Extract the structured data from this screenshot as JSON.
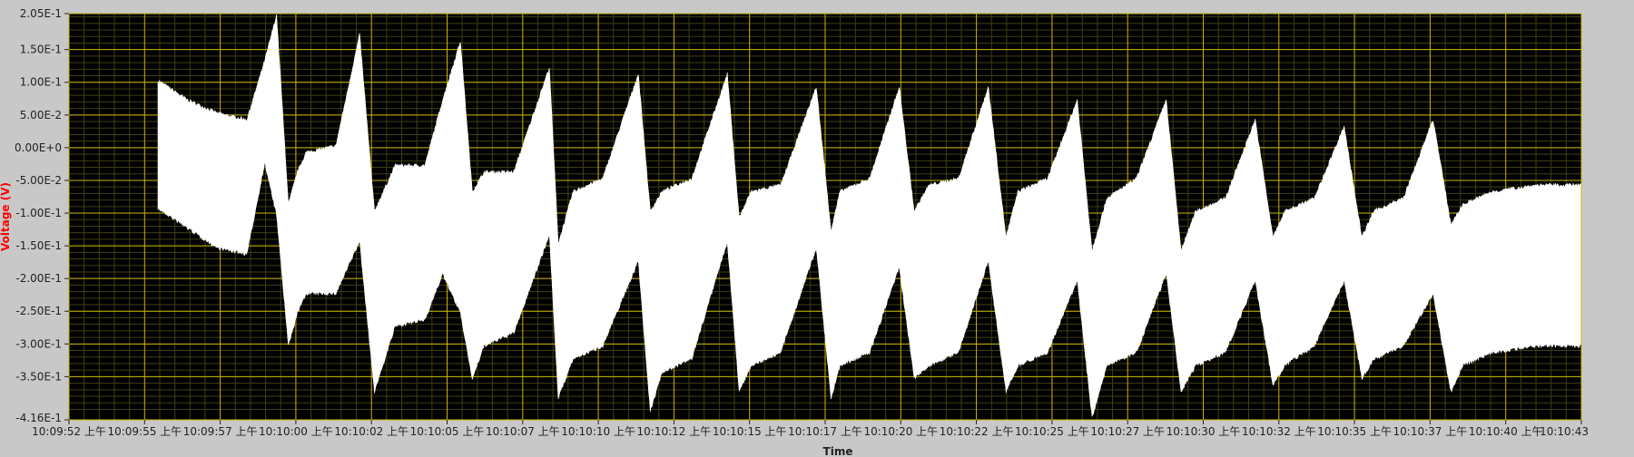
{
  "colors": {
    "panel": "#c8c8c8",
    "plot_bg": "#000000",
    "major_grid": "#c9b800",
    "minor_grid": "#3f3f14",
    "trace": "#ffffff",
    "ylabel": "#ff0000",
    "text": "#222222"
  },
  "chart_data": {
    "type": "area",
    "title": "",
    "xlabel": "Time",
    "ylabel": "Voltage (V)",
    "ylim": [
      -0.416,
      0.205
    ],
    "y_ticks": [
      {
        "value": 0.205,
        "label": "2.05E-1"
      },
      {
        "value": 0.15,
        "label": "1.50E-1"
      },
      {
        "value": 0.1,
        "label": "1.00E-1"
      },
      {
        "value": 0.05,
        "label": "5.00E-2"
      },
      {
        "value": 0.0,
        "label": "0.00E+0"
      },
      {
        "value": -0.05,
        "label": "-5.00E-2"
      },
      {
        "value": -0.1,
        "label": "-1.00E-1"
      },
      {
        "value": -0.15,
        "label": "-1.50E-1"
      },
      {
        "value": -0.2,
        "label": "-2.00E-1"
      },
      {
        "value": -0.25,
        "label": "-2.50E-1"
      },
      {
        "value": -0.3,
        "label": "-3.00E-1"
      },
      {
        "value": -0.35,
        "label": "-3.50E-1"
      },
      {
        "value": -0.416,
        "label": "-4.16E-1"
      }
    ],
    "x_ticks": [
      "10:09:52 上午",
      "10:09:55 上午",
      "10:09:57 上午",
      "10:10:00 上午",
      "10:10:02 上午",
      "10:10:05 上午",
      "10:10:07 上午",
      "10:10:10 上午",
      "10:10:12 上午",
      "10:10:15 上午",
      "10:10:17 上午",
      "10:10:20 上午",
      "10:10:22 上午",
      "10:10:25 上午",
      "10:10:27 上午",
      "10:10:30 上午",
      "10:10:32 上午",
      "10:10:35 上午",
      "10:10:37 上午",
      "10:10:40 上午",
      "10:10:43"
    ],
    "xlim": [
      "10:09:52",
      "10:10:43"
    ],
    "grid": true,
    "legend": "none",
    "series": [
      {
        "signal_start": "10:09:55",
        "upper_envelope": [
          [
            "10:09:55",
            0.1
          ],
          [
            "10:09:56",
            0.07
          ],
          [
            "10:09:57",
            0.05
          ],
          [
            "10:09:58",
            0.04
          ],
          [
            "10:09:58.6",
            0.13
          ],
          [
            "10:09:59",
            0.2
          ],
          [
            "10:09:59.4",
            -0.09
          ],
          [
            "10:09:59.7",
            -0.04
          ],
          [
            "10:10:00",
            -0.01
          ],
          [
            "10:10:01",
            0.0
          ],
          [
            "10:10:01.8",
            0.17
          ],
          [
            "10:10:02.3",
            -0.1
          ],
          [
            "10:10:03",
            -0.03
          ],
          [
            "10:10:04",
            -0.03
          ],
          [
            "10:10:04.6",
            0.07
          ],
          [
            "10:10:05.2",
            0.16
          ],
          [
            "10:10:05.6",
            -0.07
          ],
          [
            "10:10:06",
            -0.04
          ],
          [
            "10:10:07",
            -0.04
          ],
          [
            "10:10:08.2",
            0.12
          ],
          [
            "10:10:08.5",
            -0.15
          ],
          [
            "10:10:09",
            -0.07
          ],
          [
            "10:10:10",
            -0.05
          ],
          [
            "10:10:11.2",
            0.11
          ],
          [
            "10:10:11.6",
            -0.1
          ],
          [
            "10:10:12",
            -0.07
          ],
          [
            "10:10:13",
            -0.05
          ],
          [
            "10:10:14.2",
            0.11
          ],
          [
            "10:10:14.6",
            -0.11
          ],
          [
            "10:10:15",
            -0.07
          ],
          [
            "10:10:16",
            -0.06
          ],
          [
            "10:10:17.2",
            0.09
          ],
          [
            "10:10:17.7",
            -0.13
          ],
          [
            "10:10:18",
            -0.07
          ],
          [
            "10:10:19",
            -0.05
          ],
          [
            "10:10:20",
            0.09
          ],
          [
            "10:10:20.5",
            -0.1
          ],
          [
            "10:10:21",
            -0.06
          ],
          [
            "10:10:22",
            -0.05
          ],
          [
            "10:10:23",
            0.09
          ],
          [
            "10:10:23.6",
            -0.14
          ],
          [
            "10:10:24",
            -0.07
          ],
          [
            "10:10:25",
            -0.05
          ],
          [
            "10:10:26",
            0.07
          ],
          [
            "10:10:26.5",
            -0.16
          ],
          [
            "10:10:27",
            -0.08
          ],
          [
            "10:10:28",
            -0.05
          ],
          [
            "10:10:29",
            0.07
          ],
          [
            "10:10:29.5",
            -0.16
          ],
          [
            "10:10:30",
            -0.1
          ],
          [
            "10:10:31",
            -0.08
          ],
          [
            "10:10:32",
            0.04
          ],
          [
            "10:10:32.6",
            -0.14
          ],
          [
            "10:10:33",
            -0.1
          ],
          [
            "10:10:34",
            -0.08
          ],
          [
            "10:10:35",
            0.03
          ],
          [
            "10:10:35.6",
            -0.14
          ],
          [
            "10:10:36",
            -0.1
          ],
          [
            "10:10:37",
            -0.08
          ],
          [
            "10:10:38",
            0.04
          ],
          [
            "10:10:38.6",
            -0.12
          ],
          [
            "10:10:39",
            -0.09
          ],
          [
            "10:10:40",
            -0.07
          ],
          [
            "10:10:41.5",
            -0.06
          ],
          [
            "10:10:43",
            -0.06
          ]
        ],
        "lower_envelope": [
          [
            "10:09:55",
            -0.09
          ],
          [
            "10:09:56",
            -0.12
          ],
          [
            "10:09:57",
            -0.15
          ],
          [
            "10:09:58",
            -0.16
          ],
          [
            "10:09:58.6",
            -0.02
          ],
          [
            "10:09:59",
            -0.1
          ],
          [
            "10:09:59.4",
            -0.3
          ],
          [
            "10:09:59.7",
            -0.25
          ],
          [
            "10:10:00",
            -0.22
          ],
          [
            "10:10:01",
            -0.22
          ],
          [
            "10:10:01.8",
            -0.14
          ],
          [
            "10:10:02.3",
            -0.37
          ],
          [
            "10:10:03",
            -0.27
          ],
          [
            "10:10:04",
            -0.26
          ],
          [
            "10:10:04.6",
            -0.19
          ],
          [
            "10:10:05.2",
            -0.25
          ],
          [
            "10:10:05.6",
            -0.35
          ],
          [
            "10:10:06",
            -0.3
          ],
          [
            "10:10:07",
            -0.28
          ],
          [
            "10:10:08.2",
            -0.13
          ],
          [
            "10:10:08.5",
            -0.38
          ],
          [
            "10:10:09",
            -0.32
          ],
          [
            "10:10:10",
            -0.3
          ],
          [
            "10:10:11.2",
            -0.17
          ],
          [
            "10:10:11.6",
            -0.4
          ],
          [
            "10:10:12",
            -0.34
          ],
          [
            "10:10:13",
            -0.32
          ],
          [
            "10:10:14.2",
            -0.14
          ],
          [
            "10:10:14.6",
            -0.37
          ],
          [
            "10:10:15",
            -0.33
          ],
          [
            "10:10:16",
            -0.31
          ],
          [
            "10:10:17.2",
            -0.15
          ],
          [
            "10:10:17.7",
            -0.38
          ],
          [
            "10:10:18",
            -0.33
          ],
          [
            "10:10:19",
            -0.31
          ],
          [
            "10:10:20",
            -0.18
          ],
          [
            "10:10:20.5",
            -0.35
          ],
          [
            "10:10:21",
            -0.33
          ],
          [
            "10:10:22",
            -0.31
          ],
          [
            "10:10:23",
            -0.17
          ],
          [
            "10:10:23.6",
            -0.37
          ],
          [
            "10:10:24",
            -0.33
          ],
          [
            "10:10:25",
            -0.31
          ],
          [
            "10:10:26",
            -0.2
          ],
          [
            "10:10:26.5",
            -0.41
          ],
          [
            "10:10:27",
            -0.33
          ],
          [
            "10:10:28",
            -0.31
          ],
          [
            "10:10:29",
            -0.19
          ],
          [
            "10:10:29.5",
            -0.37
          ],
          [
            "10:10:30",
            -0.33
          ],
          [
            "10:10:31",
            -0.31
          ],
          [
            "10:10:32",
            -0.2
          ],
          [
            "10:10:32.6",
            -0.36
          ],
          [
            "10:10:33",
            -0.33
          ],
          [
            "10:10:34",
            -0.3
          ],
          [
            "10:10:35",
            -0.2
          ],
          [
            "10:10:35.6",
            -0.35
          ],
          [
            "10:10:36",
            -0.32
          ],
          [
            "10:10:37",
            -0.3
          ],
          [
            "10:10:38",
            -0.22
          ],
          [
            "10:10:38.6",
            -0.37
          ],
          [
            "10:10:39",
            -0.33
          ],
          [
            "10:10:40",
            -0.31
          ],
          [
            "10:10:41.5",
            -0.3
          ],
          [
            "10:10:43",
            -0.3
          ]
        ]
      }
    ]
  }
}
